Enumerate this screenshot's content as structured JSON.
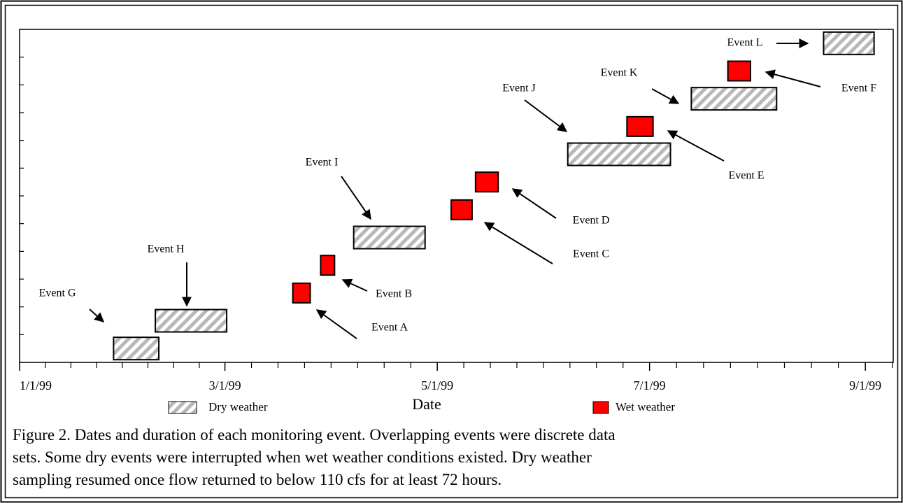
{
  "chart_data": {
    "type": "timeline",
    "x_label": "Date",
    "xlim": [
      0,
      251
    ],
    "xticks": [
      {
        "value": 0,
        "label": "1/1/99"
      },
      {
        "value": 59,
        "label": "3/1/99"
      },
      {
        "value": 120,
        "label": "5/1/99"
      },
      {
        "value": 181,
        "label": "7/1/99"
      },
      {
        "value": 243,
        "label": "9/1/99"
      }
    ],
    "series": [
      {
        "name": "Dry weather",
        "color": "#b8b8b8",
        "pattern": "hatch"
      },
      {
        "name": "Wet weather",
        "color": "#ff0000"
      }
    ],
    "events": [
      {
        "name": "Event G",
        "series": "Dry weather",
        "start": 27,
        "end": 40
      },
      {
        "name": "Event H",
        "series": "Dry weather",
        "start": 39,
        "end": 59.5
      },
      {
        "name": "Event A",
        "series": "Wet weather",
        "start": 78.5,
        "end": 83.5
      },
      {
        "name": "Event B",
        "series": "Wet weather",
        "start": 86.5,
        "end": 90.5
      },
      {
        "name": "Event I",
        "series": "Dry weather",
        "start": 96,
        "end": 116.5
      },
      {
        "name": "Event C",
        "series": "Wet weather",
        "start": 124,
        "end": 130
      },
      {
        "name": "Event D",
        "series": "Wet weather",
        "start": 131,
        "end": 137.5
      },
      {
        "name": "Event J",
        "series": "Dry weather",
        "start": 157.5,
        "end": 187
      },
      {
        "name": "Event E",
        "series": "Wet weather",
        "start": 174.5,
        "end": 182
      },
      {
        "name": "Event K",
        "series": "Dry weather",
        "start": 193,
        "end": 217.5
      },
      {
        "name": "Event F",
        "series": "Wet weather",
        "start": 203.5,
        "end": 210
      },
      {
        "name": "Event L",
        "series": "Dry weather",
        "start": 231,
        "end": 245.5
      }
    ],
    "caption": [
      "Figure 2. Dates and duration of each monitoring event. Overlapping events were discrete data",
      "sets. Some dry events were interrupted when wet weather conditions existed. Dry weather",
      "sampling resumed once flow returned to below 110 cfs for at least 72 hours."
    ]
  }
}
